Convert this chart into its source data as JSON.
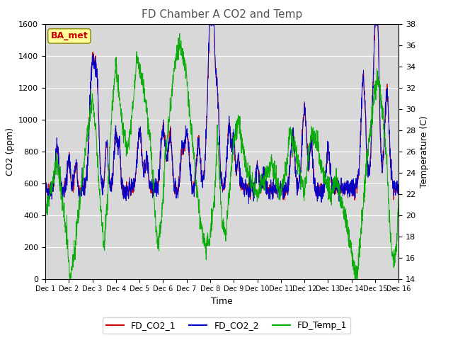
{
  "title": "FD Chamber A CO2 and Temp",
  "xlabel": "Time",
  "ylabel_left": "CO2 (ppm)",
  "ylabel_right": "Temperature (C)",
  "ylim_left": [
    0,
    1600
  ],
  "ylim_right": [
    14,
    38
  ],
  "xlim": [
    0,
    15
  ],
  "xtick_labels": [
    "Dec 1",
    "Dec 2",
    "Dec 3",
    "Dec 4",
    "Dec 5",
    "Dec 6",
    "Dec 7",
    "Dec 8",
    "Dec 9",
    "Dec 10",
    "Dec 11",
    "Dec 12",
    "Dec 13",
    "Dec 14",
    "Dec 15",
    "Dec 16"
  ],
  "color_co2_1": "#cc0000",
  "color_co2_2": "#0000cc",
  "color_temp": "#00aa00",
  "background_color": "#d8d8d8",
  "annotation_text": "BA_met",
  "annotation_color": "#cc0000",
  "annotation_bg": "#ffff99",
  "legend_labels": [
    "FD_CO2_1",
    "FD_CO2_2",
    "FD_Temp_1"
  ],
  "n_points": 2000,
  "co2_yticks": [
    0,
    200,
    400,
    600,
    800,
    1000,
    1200,
    1400,
    1600
  ],
  "temp_yticks": [
    14,
    16,
    18,
    20,
    22,
    24,
    26,
    28,
    30,
    32,
    34,
    36,
    38
  ],
  "figsize": [
    6.4,
    4.8
  ],
  "dpi": 100
}
